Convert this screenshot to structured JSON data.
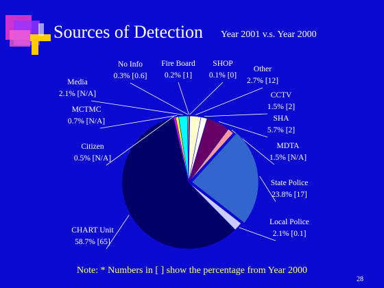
{
  "chart_data": {
    "type": "pie",
    "title": "Sources of Detection",
    "subtitle": "Year 2001 v.s. Year 2000",
    "note": "Note: * Numbers in [ ] show the percentage from Year 2000",
    "page_number": "28",
    "categories": [
      "Fire Board",
      "SHOP",
      "Other",
      "CCTV",
      "SHA",
      "MDTA",
      "State Police",
      "Local Police",
      "CHART Unit",
      "Citizen",
      "MCTMC",
      "Media",
      "No Info"
    ],
    "values": [
      0.2,
      0.1,
      2.7,
      1.5,
      5.7,
      1.5,
      23.8,
      2.1,
      58.7,
      0.5,
      0.7,
      2.1,
      0.3
    ],
    "value_labels": [
      "0.2% [1]",
      "0.1% [0]",
      "2.7% [12]",
      "1.5% [2]",
      "5.7% [2]",
      "1.5% [N/A]",
      "23.8% [17]",
      "2.1% [0.1]",
      "58.7% [65]",
      "0.5% [N/A]",
      "0.7% [N/A]",
      "2.1% [N/A]",
      "0.3% [0.6]"
    ],
    "colors": [
      "#ffffff",
      "#00ffff",
      "#ffffcc",
      "#ffffff",
      "#660066",
      "#ff9999",
      "#3366cc",
      "#ccccff",
      "#000066",
      "#ff00ff",
      "#ffff00",
      "#00ffff",
      "#ffcc00"
    ]
  }
}
